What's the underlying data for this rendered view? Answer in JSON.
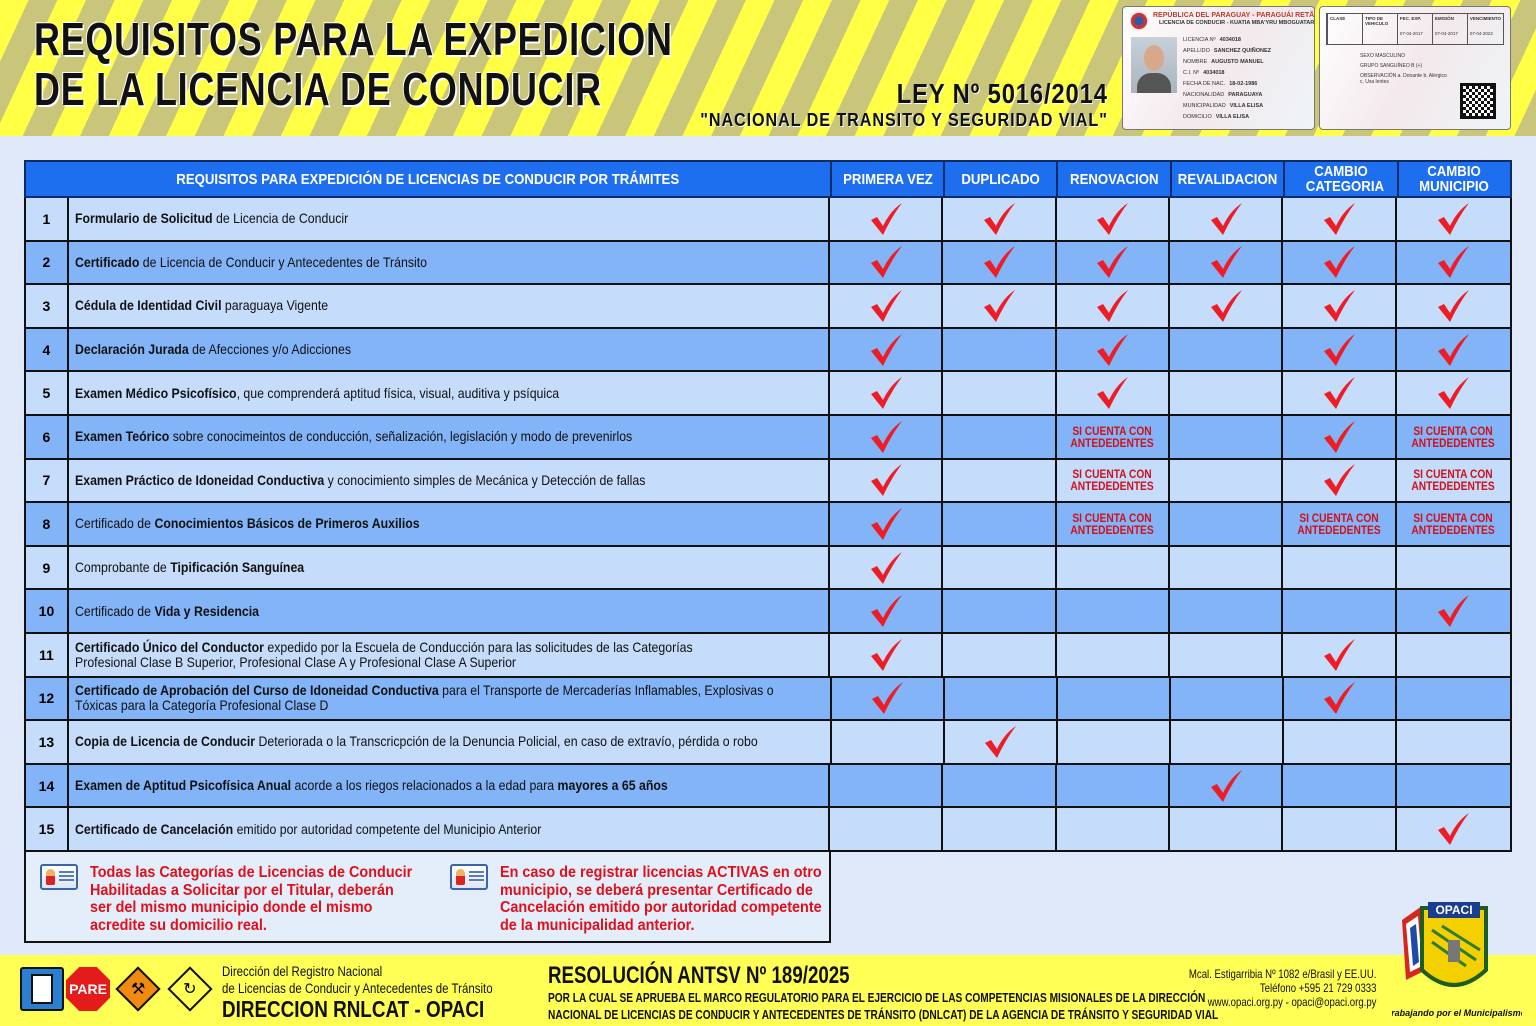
{
  "header": {
    "title_line1": "REQUISITOS PARA LA EXPEDICION",
    "title_line2": "DE LA LICENCIA DE CONDUCIR",
    "law": "LEY Nº 5016/2014",
    "law_name": "\"NACIONAL DE TRANSITO Y SEGURIDAD VIAL\"",
    "colors": {
      "stripe_yellow": "#ffff45",
      "stripe_olive": "#c9c67c"
    }
  },
  "license_card": {
    "front_title": "REPÚBLICA DEL PARAGUAY - PARAGUÁI RETÃ",
    "front_subtitle": "LICENCIA DE CONDUCIR - KUATIA MBA'YRU MBOGUATARÃ",
    "fields": [
      {
        "label": "LICENCIA Nº",
        "value": "4034018"
      },
      {
        "label": "APELLIDO",
        "value": "SANCHEZ QUIÑONEZ"
      },
      {
        "label": "NOMBRE",
        "value": "AUGUSTO MANUEL"
      },
      {
        "label": "C.I. Nº",
        "value": "4034018"
      },
      {
        "label": "FECHA DE NAC.",
        "value": "18-02-1986"
      },
      {
        "label": "NACIONALIDAD",
        "value": "PARAGUAYA"
      },
      {
        "label": "MUNICIPALIDAD",
        "value": "VILLA ELISA"
      },
      {
        "label": "DOMICILIO",
        "value": "VILLA ELISA"
      }
    ],
    "back_columns": [
      "CLASE",
      "TIPO DE VEHICULO",
      "FEC. EXP.",
      "EMISIÓN",
      "VENCIMIENTO"
    ],
    "back_values": [
      "",
      "",
      "07-04-2017",
      "07-04-2017",
      "07-04-2022"
    ],
    "back_sexo": "SEXO MASCULINO",
    "back_grupo": "GRUPO SANGUÍNEO B (+)",
    "back_obs": "OBSERVACIÓN a. Donante b. Alérgico c. Usa lentes"
  },
  "table": {
    "header": [
      "REQUISITOS PARA EXPEDICIÓN DE LICENCIAS DE CONDUCIR POR TRÁMITES",
      "PRIMERA VEZ",
      "DUPLICADO",
      "RENOVACION",
      "REVALIDACION",
      "CAMBIO CATEGORIA",
      "CAMBIO MUNICIPIO"
    ],
    "conditional_label_1": "SI CUENTA CON",
    "conditional_label_2": "ANTEDEDENTES",
    "colors": {
      "header_bg": "#1e6ff0",
      "row_light": "#c6dcfb",
      "row_dark": "#82b4f7",
      "check": "#ee1c24",
      "conditional": "#d0101a"
    },
    "rows": [
      {
        "num": "1",
        "desc": [
          [
            {
              "t": "Formulario de Solicitud",
              "b": true
            },
            {
              "t": " de Licencia de Conducir",
              "b": false
            }
          ]
        ],
        "marks": [
          "check",
          "check",
          "check",
          "check",
          "check",
          "check"
        ]
      },
      {
        "num": "2",
        "desc": [
          [
            {
              "t": "Certificado",
              "b": true
            },
            {
              "t": " de Licencia de Conducir y Antecedentes de Tránsito",
              "b": false
            }
          ]
        ],
        "marks": [
          "check",
          "check",
          "check",
          "check",
          "check",
          "check"
        ]
      },
      {
        "num": "3",
        "desc": [
          [
            {
              "t": "Cédula de Identidad Civil",
              "b": true
            },
            {
              "t": " paraguaya Vigente",
              "b": false
            }
          ]
        ],
        "marks": [
          "check",
          "check",
          "check",
          "check",
          "check",
          "check"
        ]
      },
      {
        "num": "4",
        "desc": [
          [
            {
              "t": "Declaración Jurada",
              "b": true
            },
            {
              "t": " de Afecciones y/o Adicciones",
              "b": false
            }
          ]
        ],
        "marks": [
          "check",
          "",
          "check",
          "",
          "check",
          "check"
        ]
      },
      {
        "num": "5",
        "desc": [
          [
            {
              "t": "Examen Médico Psicofísico",
              "b": true
            },
            {
              "t": ", que comprenderá aptitud física, visual, auditiva y psíquica",
              "b": false
            }
          ]
        ],
        "marks": [
          "check",
          "",
          "check",
          "",
          "check",
          "check"
        ]
      },
      {
        "num": "6",
        "desc": [
          [
            {
              "t": "Examen Teórico",
              "b": true
            },
            {
              "t": " sobre conocimeintos de conducción, señalización, legislación y modo de prevenirlos",
              "b": false
            }
          ]
        ],
        "marks": [
          "check",
          "",
          "conditional",
          "",
          "check",
          "conditional"
        ]
      },
      {
        "num": "7",
        "desc": [
          [
            {
              "t": "Examen Práctico de Idoneidad Conductiva",
              "b": true
            },
            {
              "t": " y conocimiento simples de Mecánica y Detección de fallas",
              "b": false
            }
          ]
        ],
        "marks": [
          "check",
          "",
          "conditional",
          "",
          "check",
          "conditional"
        ]
      },
      {
        "num": "8",
        "desc": [
          [
            {
              "t": "Certificado de ",
              "b": false
            },
            {
              "t": "Conocimientos Básicos de Primeros Auxilios",
              "b": true
            }
          ]
        ],
        "marks": [
          "check",
          "",
          "conditional",
          "",
          "conditional",
          "conditional"
        ]
      },
      {
        "num": "9",
        "desc": [
          [
            {
              "t": "Comprobante de ",
              "b": false
            },
            {
              "t": "Tipificación Sanguínea",
              "b": true
            }
          ]
        ],
        "marks": [
          "check",
          "",
          "",
          "",
          "",
          ""
        ]
      },
      {
        "num": "10",
        "desc": [
          [
            {
              "t": "Certificado de ",
              "b": false
            },
            {
              "t": "Vida y Residencia",
              "b": true
            }
          ]
        ],
        "marks": [
          "check",
          "",
          "",
          "",
          "",
          "check"
        ]
      },
      {
        "num": "11",
        "desc": [
          [
            {
              "t": "Certificado Único del Conductor",
              "b": true
            },
            {
              "t": " expedido por la Escuela de Conducción para las solicitudes de las Categorías",
              "b": false
            }
          ],
          [
            {
              "t": "Profesional Clase B Superior, Profesional Clase A y Profesional Clase A Superior",
              "b": false
            }
          ]
        ],
        "marks": [
          "check",
          "",
          "",
          "",
          "check",
          ""
        ]
      },
      {
        "num": "12",
        "desc": [
          [
            {
              "t": "Certificado de Aprobación del Curso de Idoneidad Conductiva",
              "b": true
            },
            {
              "t": " para el Transporte de Mercaderías Inflamables, Explosivas o",
              "b": false
            }
          ],
          [
            {
              "t": "Tóxicas para la Categoría Profesional Clase D",
              "b": false
            }
          ]
        ],
        "marks": [
          "check",
          "",
          "",
          "",
          "check",
          ""
        ]
      },
      {
        "num": "13",
        "desc": [
          [
            {
              "t": "Copia de Licencia de Conducir",
              "b": true
            },
            {
              "t": " Deteriorada o la Transcricpción de la Denuncia Policial, en caso de extravío, pérdida o robo",
              "b": false
            }
          ]
        ],
        "marks": [
          "",
          "check",
          "",
          "",
          "",
          ""
        ]
      },
      {
        "num": "14",
        "desc": [
          [
            {
              "t": "Examen de Aptitud Psicofísica Anual",
              "b": true
            },
            {
              "t": " acorde a los riegos relacionados a la edad para ",
              "b": false
            },
            {
              "t": "mayores a 65 años",
              "b": true
            }
          ]
        ],
        "marks": [
          "",
          "",
          "",
          "check",
          "",
          ""
        ]
      },
      {
        "num": "15",
        "desc": [
          [
            {
              "t": "Certificado de Cancelación",
              "b": true
            },
            {
              "t": " emitido por autoridad competente del Municipio Anterior",
              "b": false
            }
          ]
        ],
        "marks": [
          "",
          "",
          "",
          "",
          "",
          "check"
        ]
      }
    ]
  },
  "notes": [
    {
      "icon": "info-card-icon",
      "lines": [
        "Todas las Categorías de Licencias de Conducir",
        "Habilitadas a Solicitar por el Titular, deberán",
        "ser del mismo municipio donde el mismo",
        "acredite su domicilio real."
      ]
    },
    {
      "icon": "info-card-icon",
      "lines": [
        "En caso de registrar licencias ACTIVAS en otro",
        "municipio, se deberá presentar Certificado de",
        "Cancelación emitido por autoridad competente",
        "de la municipalidad anterior."
      ]
    }
  ],
  "footer": {
    "signs": [
      "fuel-station-sign-icon",
      "stop-sign-icon",
      "road-work-sign-icon",
      "roundabout-sign-icon"
    ],
    "stop_sign_text": "PARE",
    "dir_line1": "Dirección del Registro Nacional",
    "dir_line2": "de Licencias de Conducir y Antecedentes de Tránsito",
    "dir_line3": "DIRECCION RNLCAT - OPACI",
    "resolution_title": "RESOLUCIÓN ANTSV Nº 189/2025",
    "resolution_line1": "POR LA CUAL SE APRUEBA EL MARCO REGULATORIO PARA EL EJERCICIO DE LAS COMPETENCIAS MISIONALES DE LA DIRECCIÓN",
    "resolution_line2": "NACIONAL DE LICENCIAS DE CONDUCIR Y ANTECEDENTES DE TRÁNSITO (DNLCAT) DE LA AGENCIA DE TRÁNSITO Y SEGURIDAD VIAL",
    "address": "Mcal. Estigarribia Nº 1082 e/Brasil y EE.UU.",
    "phone": "Teléfono +595 21 729 0333",
    "web": "www.opaci.org.py - opaci@opaci.org.py",
    "logo_text": "OPACI",
    "logo_slogan": "Trabajando por el Municipalismo",
    "background": "#ffff55"
  }
}
